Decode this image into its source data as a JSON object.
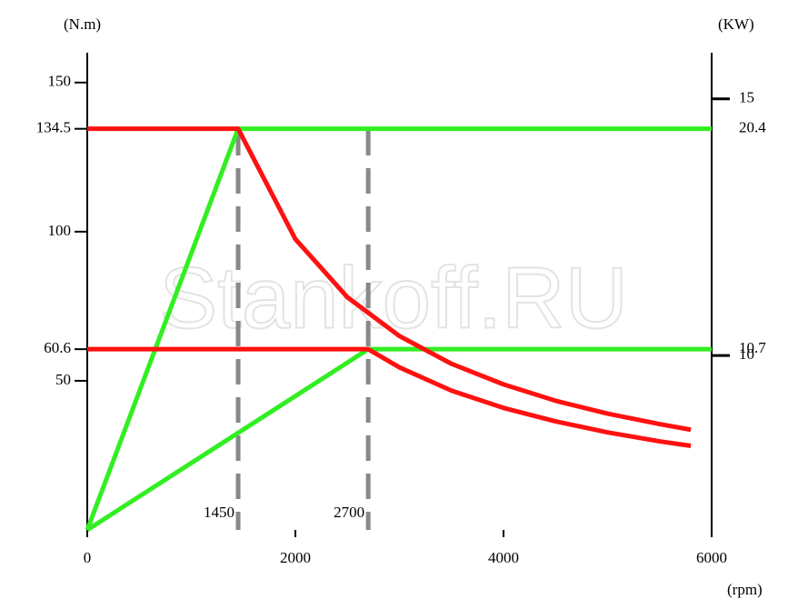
{
  "chart_data": {
    "type": "line",
    "y_label": "(N.m)",
    "y2_label": "(KW)",
    "x_label": "(rpm)",
    "watermark": "Stankoff.RU",
    "xlim": [
      0,
      6000
    ],
    "xticks": [
      0,
      2000,
      4000,
      6000
    ],
    "ylim": [
      0,
      160
    ],
    "yticks": [
      50,
      60.6,
      100,
      134.5,
      150
    ],
    "y2lim": [
      6.6,
      15.9
    ],
    "y2ticks": [
      10,
      15
    ],
    "xmarkers": [
      1450,
      2700
    ],
    "annotations": [
      {
        "text": "20.4",
        "y": 134.5
      },
      {
        "text": "10.7",
        "y": 60.6
      }
    ],
    "series": [
      {
        "color": "#33ee22",
        "x": [
          0,
          1450,
          6000
        ],
        "values": [
          0,
          134.5,
          134.5
        ]
      },
      {
        "color": "#33ee22",
        "x": [
          0,
          2700,
          6000
        ],
        "values": [
          0,
          60.6,
          60.6
        ]
      },
      {
        "color": "#ff1111",
        "x": [
          0,
          1450,
          2000,
          2500,
          3000,
          3500,
          4000,
          4500,
          5000,
          5500,
          5800
        ],
        "values": [
          134.5,
          134.5,
          97.5,
          78.0,
          65.0,
          55.7,
          48.8,
          43.3,
          39.0,
          35.5,
          33.6
        ]
      },
      {
        "color": "#ff1111",
        "x": [
          0,
          2700,
          3000,
          3500,
          4000,
          4500,
          5000,
          5500,
          5800
        ],
        "values": [
          60.6,
          60.6,
          54.5,
          46.7,
          40.9,
          36.4,
          32.7,
          29.7,
          28.2
        ]
      }
    ]
  }
}
